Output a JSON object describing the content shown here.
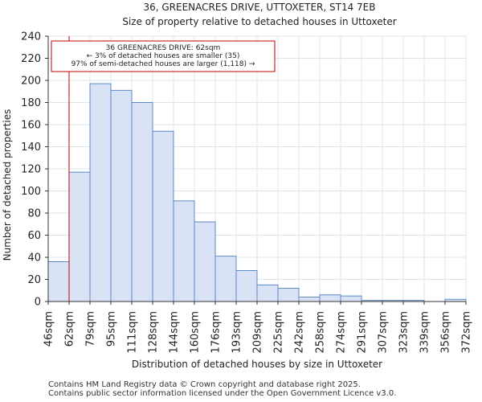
{
  "chart_data": {
    "type": "bar",
    "title": "36, GREENACRES DRIVE, UTTOXETER, ST14 7EB",
    "subtitle": "Size of property relative to detached houses in Uttoxeter",
    "xlabel": "Distribution of detached houses by size in Uttoxeter",
    "ylabel": "Number of detached properties",
    "ylim": [
      0,
      240
    ],
    "yticks": [
      0,
      20,
      40,
      60,
      80,
      100,
      120,
      140,
      160,
      180,
      200,
      220,
      240
    ],
    "bin_edges": [
      "46sqm",
      "62sqm",
      "79sqm",
      "95sqm",
      "111sqm",
      "128sqm",
      "144sqm",
      "160sqm",
      "176sqm",
      "193sqm",
      "209sqm",
      "225sqm",
      "242sqm",
      "258sqm",
      "274sqm",
      "291sqm",
      "307sqm",
      "323sqm",
      "339sqm",
      "356sqm",
      "372sqm"
    ],
    "values": [
      36,
      117,
      197,
      191,
      180,
      154,
      91,
      72,
      41,
      28,
      15,
      12,
      4,
      6,
      5,
      1,
      1,
      1,
      0,
      2
    ],
    "marker": {
      "position_bin_index": 1,
      "label": "62sqm"
    },
    "annotation": {
      "line1": "36 GREENACRES DRIVE: 62sqm",
      "line2": "← 3% of detached houses are smaller (35)",
      "line3": "97% of semi-detached houses are larger (1,118) →"
    },
    "grid": true
  },
  "colors": {
    "bar_fill": "#dae3f5",
    "bar_stroke": "#5b8ac9",
    "marker": "#c00000",
    "grid": "#dde3ec"
  },
  "footer": {
    "line1": "Contains HM Land Registry data © Crown copyright and database right 2025.",
    "line2": "Contains public sector information licensed under the Open Government Licence v3.0."
  }
}
